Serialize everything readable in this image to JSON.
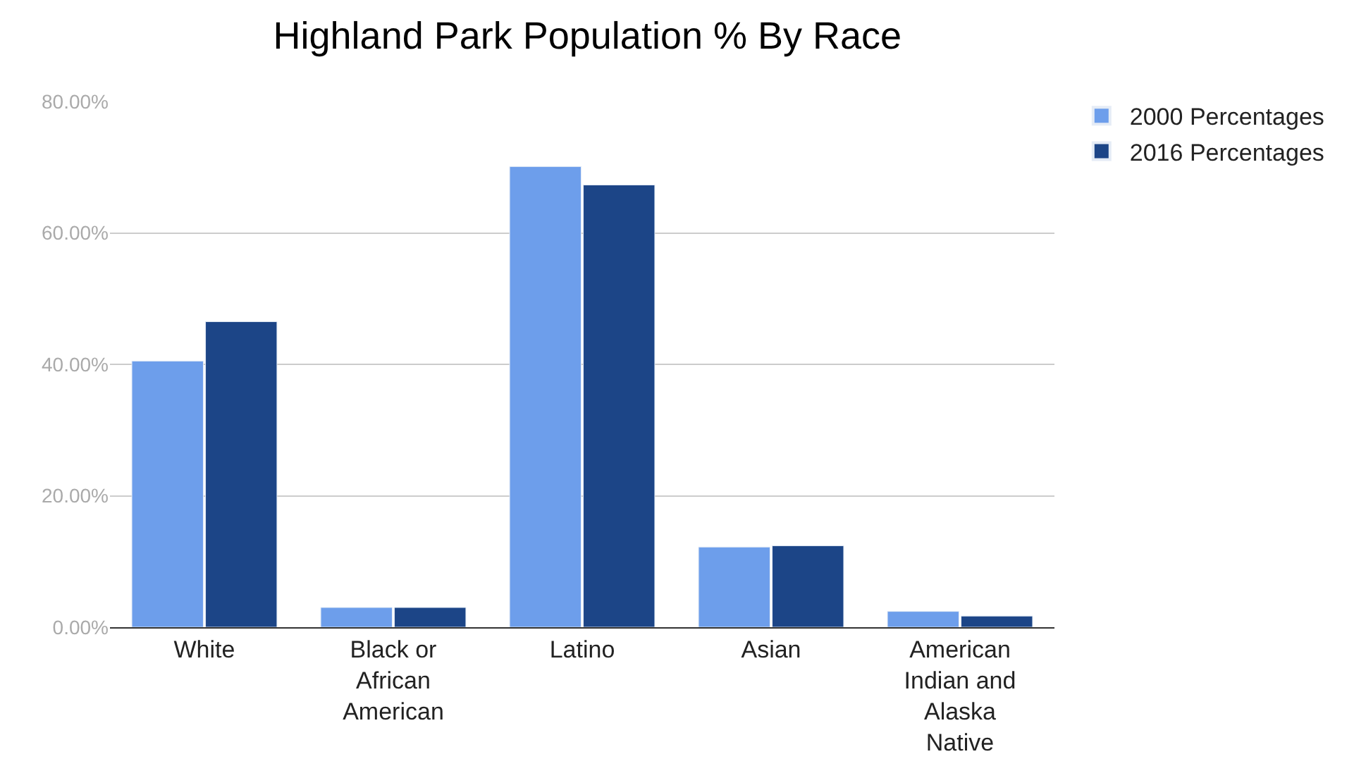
{
  "chart_data": {
    "type": "bar",
    "title": "Highland Park Population % By Race",
    "categories": [
      "White",
      "Black or African American",
      "Latino",
      "Asian",
      "American Indian and Alaska Native"
    ],
    "series": [
      {
        "name": "2000 Percentages",
        "color": "#6d9eeb",
        "values": [
          40.5,
          3.0,
          70.1,
          12.2,
          2.4
        ]
      },
      {
        "name": "2016 Percentages",
        "color": "#1c4587",
        "values": [
          46.5,
          3.0,
          67.3,
          12.4,
          1.7
        ]
      }
    ],
    "ylim": [
      0,
      80
    ],
    "yticks": [
      {
        "value": 0,
        "label": "0.00%"
      },
      {
        "value": 20,
        "label": "20.00%"
      },
      {
        "value": 40,
        "label": "40.00%"
      },
      {
        "value": 60,
        "label": "60.00%"
      },
      {
        "value": 80,
        "label": "80.00%"
      }
    ],
    "grid": "y",
    "legend": "top right"
  }
}
